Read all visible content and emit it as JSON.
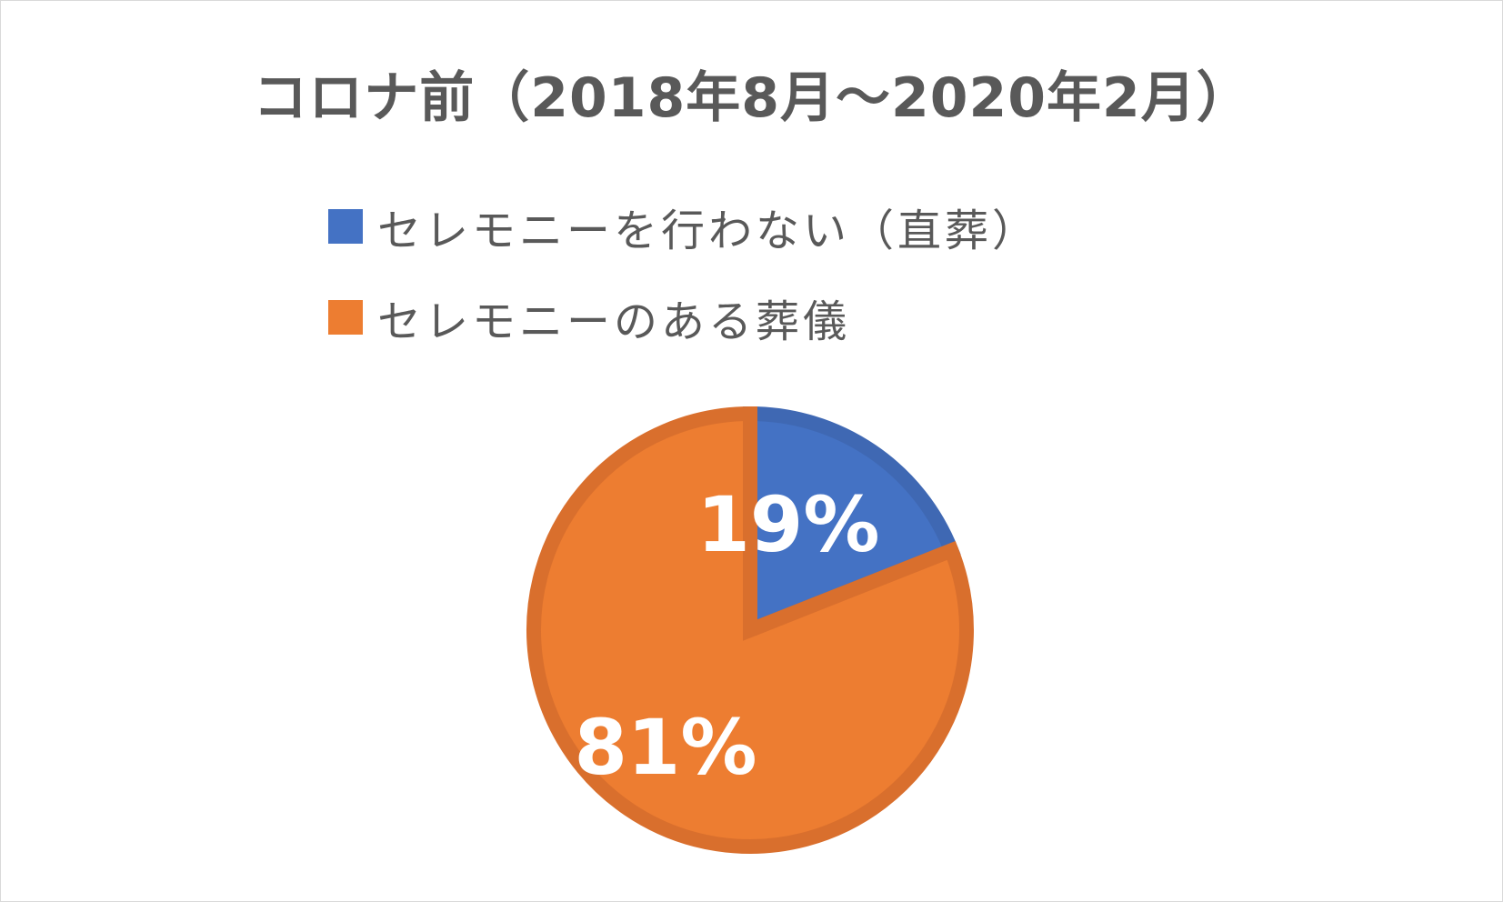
{
  "chart_data": {
    "type": "pie",
    "title": "コロナ前（2018年8月～2020年2月）",
    "categories": [
      "セレモニーを行わない（直葬）",
      "セレモニーのある葬儀"
    ],
    "values": [
      19,
      81
    ],
    "data_labels": [
      "19%",
      "81%"
    ],
    "colors": [
      "#4472c4",
      "#ed7d31"
    ],
    "edge_colors": [
      "#3f68b3",
      "#d96f2d"
    ],
    "legend_position": "top"
  }
}
